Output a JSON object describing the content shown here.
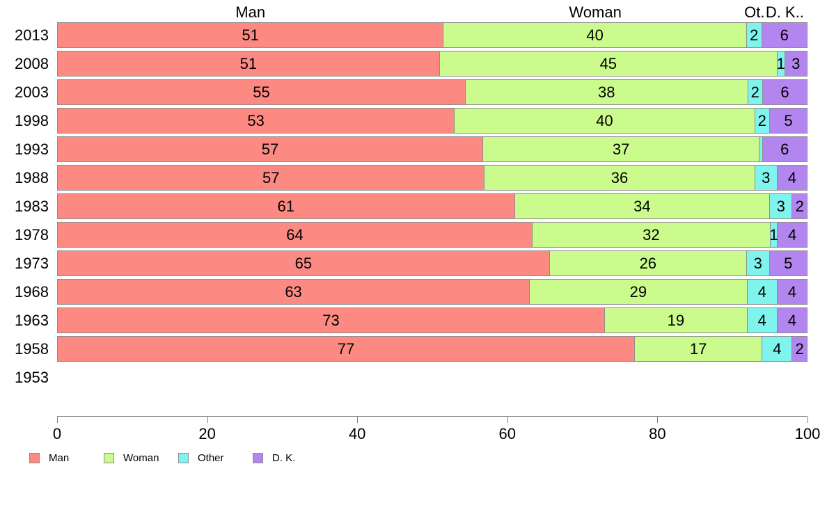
{
  "chart_data": {
    "type": "bar",
    "orientation": "horizontal",
    "stacked": true,
    "title": "",
    "column_headers": [
      "Man",
      "Woman",
      "Ot.",
      "D. K.."
    ],
    "categories": [
      "2013",
      "2008",
      "2003",
      "1998",
      "1993",
      "1988",
      "1983",
      "1978",
      "1973",
      "1968",
      "1963",
      "1958",
      "1953"
    ],
    "series": [
      {
        "name": "Man",
        "color": "#fc8a82",
        "values": [
          51,
          51,
          55,
          53,
          57,
          57,
          61,
          64,
          65,
          63,
          73,
          77,
          null
        ]
      },
      {
        "name": "Woman",
        "color": "#cbfb8d",
        "values": [
          40,
          45,
          38,
          40,
          37,
          36,
          34,
          32,
          26,
          29,
          19,
          17,
          null
        ]
      },
      {
        "name": "Other",
        "color": "#7ff4ed",
        "values": [
          2,
          1,
          2,
          2,
          0,
          3,
          3,
          1,
          3,
          4,
          4,
          4,
          null
        ]
      },
      {
        "name": "D. K.",
        "color": "#b286ee",
        "values": [
          6,
          3,
          6,
          5,
          6,
          4,
          2,
          4,
          5,
          4,
          4,
          2,
          null
        ]
      }
    ],
    "x_axis": {
      "min": 0,
      "max": 100,
      "tick_labels": [
        "0",
        "20",
        "40",
        "60",
        "80",
        "100"
      ]
    },
    "legend": {
      "position": "bottom-left",
      "items": [
        {
          "label": "Man",
          "color": "#fc8a82"
        },
        {
          "label": "Woman",
          "color": "#cbfb8d"
        },
        {
          "label": "Other",
          "color": "#7ff4ed"
        },
        {
          "label": "D. K.",
          "color": "#b286ee"
        }
      ]
    },
    "grid": false,
    "segment_border_color": "#8c8c8c",
    "axis_color": "#808080",
    "notes": "1993 Other segment drawn as an unlabeled sliver (value 0); 1953 row has no bar"
  }
}
